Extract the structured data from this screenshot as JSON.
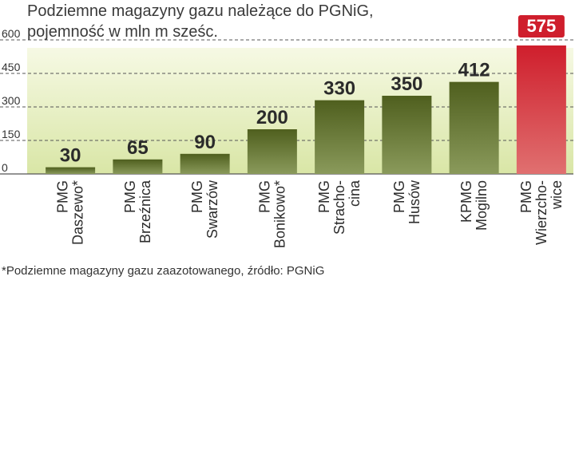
{
  "chart_data": {
    "type": "bar",
    "title_line1": "Podziemne magazyny gazu należące do PGNiG,",
    "title_line2": "pojemność w mln m sześc.",
    "ylim": [
      0,
      600
    ],
    "yticks": [
      "0",
      "150",
      "300",
      "450",
      "600"
    ],
    "grid": true,
    "categories": [
      [
        "PMG",
        "Daszewo*"
      ],
      [
        "PMG",
        "Brzeźnica"
      ],
      [
        "PMG",
        "Swarzów"
      ],
      [
        "PMG",
        "Bonikowo*"
      ],
      [
        "PMG",
        "Stracho-",
        "cina"
      ],
      [
        "PMG",
        "Husów"
      ],
      [
        "KPMG",
        "Mogilno"
      ],
      [
        "PMG",
        "Wierzcho-",
        "wice"
      ]
    ],
    "values": [
      30,
      65,
      90,
      200,
      330,
      350,
      412,
      575
    ],
    "value_labels": [
      "30",
      "65",
      "90",
      "200",
      "330",
      "350",
      "412",
      "575"
    ],
    "highlight_index": 7,
    "colors": {
      "bar_top": "#4f5f1e",
      "bar_bottom": "#8a9a5b",
      "highlight_top": "#cf1e2c",
      "highlight_bottom": "#e07070",
      "background_top": "#f6f9e4",
      "background_bottom": "#d9e6a6",
      "grid": "#555555"
    },
    "footnote": "*Podziemne magazyny gazu zaazotowanego, źródło: PGNiG"
  }
}
